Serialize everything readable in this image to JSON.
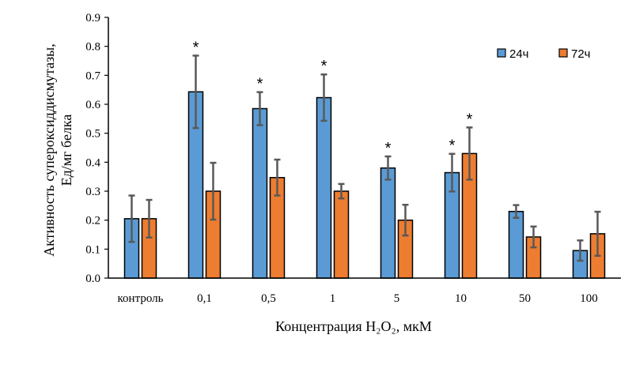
{
  "chart_data": {
    "type": "bar",
    "title": "",
    "xlabel": "Концентрация H₂O₂, мкМ",
    "ylabel_lines": [
      "Активность супероксиддисмутазы,",
      "Ед/мг белка"
    ],
    "ylim": [
      0,
      0.9
    ],
    "yticks": [
      "0.0",
      "0.1",
      "0.2",
      "0.3",
      "0.4",
      "0.5",
      "0.6",
      "0.7",
      "0.8",
      "0.9"
    ],
    "categories": [
      "контроль",
      "0,1",
      "0,5",
      "1",
      "5",
      "10",
      "50",
      "100"
    ],
    "legend_position": "top-right",
    "grid": false,
    "significance_marker": "*",
    "series": [
      {
        "name": "24ч",
        "color": "#5B9BD5",
        "values": [
          0.205,
          0.643,
          0.585,
          0.623,
          0.38,
          0.364,
          0.23,
          0.095
        ],
        "errors": [
          0.08,
          0.125,
          0.057,
          0.08,
          0.04,
          0.065,
          0.022,
          0.035
        ],
        "significant": [
          false,
          true,
          true,
          true,
          true,
          true,
          false,
          false
        ]
      },
      {
        "name": "72ч",
        "color": "#ED7D31",
        "values": [
          0.205,
          0.3,
          0.347,
          0.3,
          0.2,
          0.43,
          0.142,
          0.153
        ],
        "errors": [
          0.065,
          0.098,
          0.062,
          0.025,
          0.053,
          0.09,
          0.036,
          0.076
        ],
        "significant": [
          false,
          false,
          false,
          false,
          false,
          true,
          false,
          false
        ]
      }
    ]
  }
}
